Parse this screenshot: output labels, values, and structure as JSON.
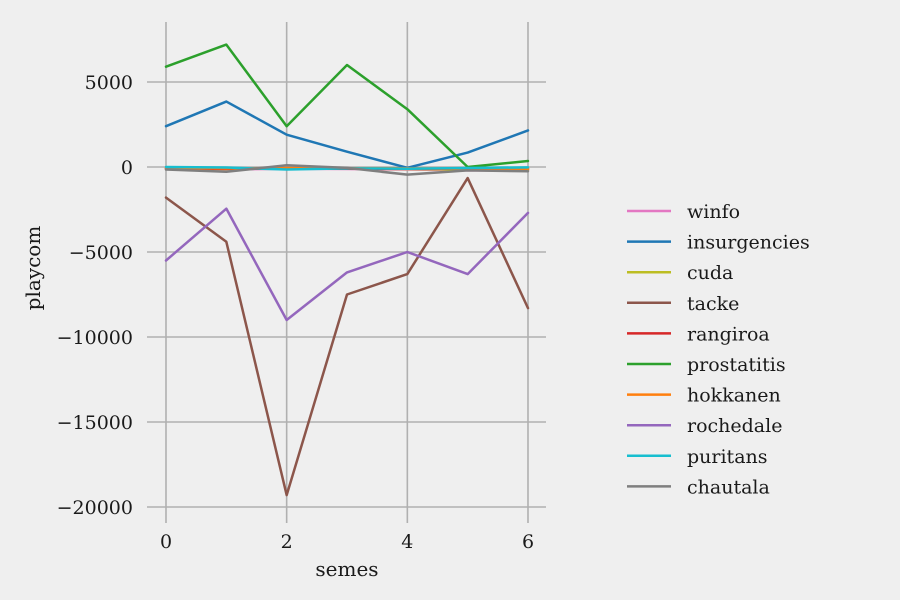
{
  "chart_data": {
    "type": "line",
    "title": "",
    "xlabel": "semes",
    "ylabel": "playcom",
    "xlim": [
      0,
      6
    ],
    "ylim": [
      -20000,
      8000
    ],
    "xticks": [
      0,
      2,
      4,
      6
    ],
    "yticks": [
      5000,
      0,
      -5000,
      -10000,
      -15000,
      -20000
    ],
    "xtick_labels": [
      "0",
      "2",
      "4",
      "6"
    ],
    "ytick_labels": [
      "5000",
      "0",
      "−5000",
      "−10000",
      "−15000",
      "−20000"
    ],
    "grid": true,
    "legend_position": "right",
    "x": [
      0,
      1,
      2,
      3,
      4,
      5,
      6
    ],
    "series": [
      {
        "name": "winfo",
        "color": "#e377c2",
        "values": [
          -100,
          -150,
          -100,
          -120,
          -150,
          -200,
          -200
        ]
      },
      {
        "name": "insurgencies",
        "color": "#1f77b4",
        "values": [
          2400,
          3850,
          1900,
          900,
          -50,
          850,
          2150
        ]
      },
      {
        "name": "cuda",
        "color": "#bcbd22",
        "values": [
          -100,
          -120,
          -80,
          -100,
          -120,
          -150,
          -150
        ]
      },
      {
        "name": "tacke",
        "color": "#8c564b",
        "values": [
          -1800,
          -4400,
          -19300,
          -7500,
          -6300,
          -650,
          -8300
        ]
      },
      {
        "name": "rangiroa",
        "color": "#d62728",
        "values": [
          -100,
          -100,
          -100,
          -100,
          -100,
          -100,
          -100
        ]
      },
      {
        "name": "prostatitis",
        "color": "#2ca02c",
        "values": [
          5900,
          7200,
          2400,
          6000,
          3400,
          0,
          350
        ]
      },
      {
        "name": "hokkanen",
        "color": "#ff7f0e",
        "values": [
          -50,
          -80,
          -60,
          -70,
          -80,
          -100,
          -100
        ]
      },
      {
        "name": "rochedale",
        "color": "#9467bd",
        "values": [
          -5500,
          -2450,
          -9000,
          -6200,
          -5000,
          -6300,
          -2700
        ]
      },
      {
        "name": "puritans",
        "color": "#17becf",
        "values": [
          0,
          -30,
          -150,
          -80,
          -100,
          -60,
          -20
        ]
      },
      {
        "name": "chautala",
        "color": "#7f7f7f",
        "values": [
          -150,
          -280,
          100,
          -50,
          -450,
          -200,
          -250
        ]
      }
    ]
  }
}
